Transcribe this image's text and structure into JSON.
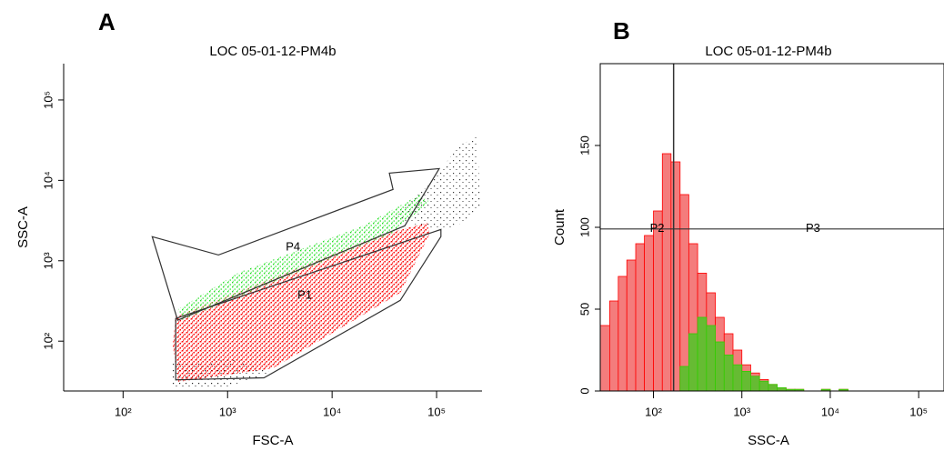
{
  "chart_data": [
    {
      "type": "scatter",
      "panel_label": "A",
      "title": "LOC 05-01-12-PM4b",
      "x_label": "FSC-A",
      "y_label": "SSC-A",
      "x_log": true,
      "y_log": true,
      "xlim": [
        27,
        272000
      ],
      "ylim": [
        24,
        283000
      ],
      "xticks": [
        {
          "value": 100,
          "label": "10²"
        },
        {
          "value": 1000,
          "label": "10³"
        },
        {
          "value": 10000,
          "label": "10⁴"
        },
        {
          "value": 100000,
          "label": "10⁵"
        }
      ],
      "yticks": [
        {
          "value": 100,
          "label": "10²"
        },
        {
          "value": 1000,
          "label": "10³"
        },
        {
          "value": 10000,
          "label": "10⁴"
        },
        {
          "value": 100000,
          "label": "10⁵"
        }
      ],
      "gates": [
        {
          "name": "P4",
          "vertices_x": [
            190,
            818,
            38300,
            35300,
            106000,
            49600,
            333
          ],
          "vertices_y": [
            1990,
            1180,
            7710,
            12300,
            14000,
            2720,
            182
          ],
          "label_x": 4230,
          "label_y": 1460
        },
        {
          "name": "P1",
          "vertices_x": [
            319,
            110000,
            110000,
            44900,
            2230,
            319
          ],
          "vertices_y": [
            192,
            2450,
            2000,
            322,
            35,
            33
          ],
          "label_x": 5480,
          "label_y": 367
        }
      ]
    },
    {
      "type": "histogram",
      "panel_label": "B",
      "title": "LOC 05-01-12-PM4b",
      "x_label": "SSC-A",
      "y_label": "Count",
      "x_log": true,
      "xlim": [
        25,
        160000
      ],
      "ylim": [
        0,
        200
      ],
      "xticks": [
        {
          "value": 100,
          "label": "10²"
        },
        {
          "value": 1000,
          "label": "10³"
        },
        {
          "value": 10000,
          "label": "10⁴"
        },
        {
          "value": 100000,
          "label": "10⁵"
        }
      ],
      "yticks": [
        0,
        50,
        100,
        150
      ],
      "bins": [
        25,
        32,
        40,
        50,
        63,
        79,
        100,
        126,
        158,
        200,
        251,
        316,
        398,
        501,
        631,
        794,
        1000,
        1259,
        1585,
        1995,
        2512,
        3162,
        3981,
        5012,
        6310,
        7943,
        10000,
        12589,
        15849
      ],
      "series": [
        {
          "color": "#ff0000",
          "values": [
            40,
            55,
            70,
            80,
            90,
            95,
            110,
            145,
            140,
            120,
            90,
            72,
            60,
            45,
            35,
            25,
            16,
            11,
            7,
            4,
            2,
            1,
            1,
            0,
            0,
            1,
            0,
            1
          ]
        },
        {
          "color": "#33cc00",
          "values": [
            0,
            0,
            0,
            0,
            0,
            0,
            0,
            0,
            0,
            15,
            35,
            45,
            40,
            30,
            22,
            16,
            12,
            9,
            6,
            4,
            2,
            1,
            1,
            0,
            0,
            1,
            0,
            1
          ]
        }
      ],
      "gates": [
        {
          "name": "P2",
          "divider_x": 169,
          "marker_y": 99,
          "label_x": 110,
          "label_y": 99
        },
        {
          "name": "P3",
          "label_x": 6370,
          "label_y": 99
        }
      ]
    }
  ]
}
